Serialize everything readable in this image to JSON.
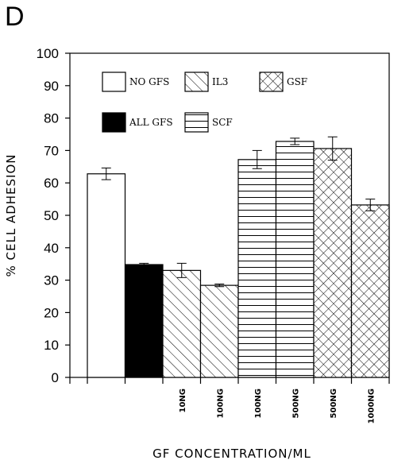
{
  "chart_data": {
    "type": "bar",
    "panel_label": "D",
    "ylabel": "% CELL ADHESION",
    "xlabel": "GF CONCENTRATION/ML",
    "ylim": [
      0,
      100
    ],
    "yticks": [
      0,
      10,
      20,
      30,
      40,
      50,
      60,
      70,
      80,
      90,
      100
    ],
    "categories": [
      "",
      "",
      "10NG",
      "100NG",
      "100NG",
      "500NG",
      "500NG",
      "1000NG"
    ],
    "values": [
      62.8,
      34.8,
      33.0,
      28.4,
      67.2,
      72.8,
      70.6,
      53.2
    ],
    "errors": [
      1.8,
      0.4,
      2.2,
      0.4,
      2.8,
      1.0,
      3.6,
      1.8
    ],
    "groups": [
      "NO GFS",
      "ALL GFS",
      "IL3",
      "IL3",
      "SCF",
      "SCF",
      "GSF",
      "GSF"
    ],
    "legend": [
      {
        "name": "NO GFS",
        "pattern": "none"
      },
      {
        "name": "IL3",
        "pattern": "diagonal"
      },
      {
        "name": "GSF",
        "pattern": "crosshatch"
      },
      {
        "name": "ALL GFS",
        "pattern": "solid"
      },
      {
        "name": "SCF",
        "pattern": "horizontal"
      }
    ],
    "legend_placement": "top-left",
    "grid": false
  }
}
